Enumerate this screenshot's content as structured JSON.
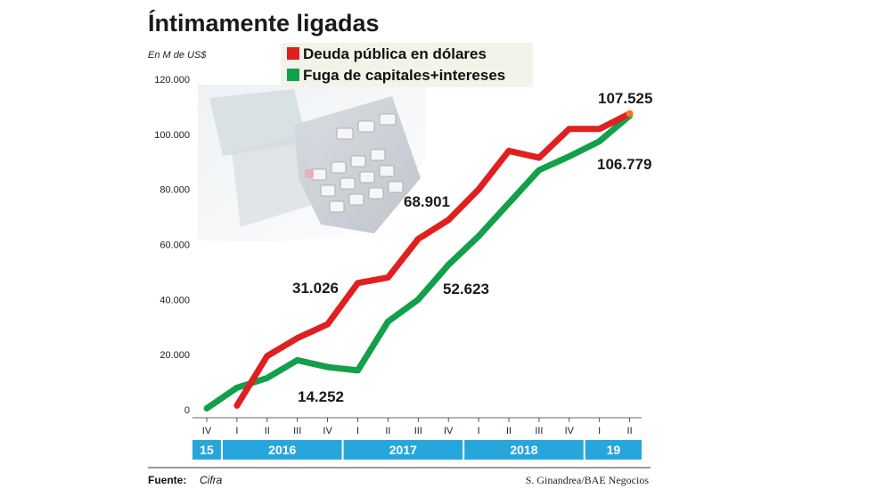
{
  "chart_data": {
    "type": "line",
    "title": "Íntimamente ligadas",
    "unit_label": "En M de US$",
    "ylim": [
      0,
      120000
    ],
    "y_ticks": [
      "0",
      "20.000",
      "40.000",
      "60.000",
      "80.000",
      "100.000",
      "120.000"
    ],
    "x": [
      "IV",
      "I",
      "II",
      "III",
      "IV",
      "I",
      "II",
      "III",
      "IV",
      "I",
      "II",
      "III",
      "IV",
      "I",
      "II"
    ],
    "years": [
      {
        "label": "15",
        "start": 0,
        "end": 0
      },
      {
        "label": "2016",
        "start": 1,
        "end": 4
      },
      {
        "label": "2017",
        "start": 5,
        "end": 8
      },
      {
        "label": "2018",
        "start": 9,
        "end": 12
      },
      {
        "label": "19",
        "start": 13,
        "end": 14
      }
    ],
    "legend_position": "top",
    "grid": false,
    "series": [
      {
        "name": "Deuda pública en dólares",
        "color": "#e02020",
        "values": [
          null,
          1500,
          19500,
          26000,
          31026,
          46000,
          48000,
          62000,
          68901,
          80000,
          94000,
          91500,
          102000,
          102000,
          107525
        ]
      },
      {
        "name": "Fuga de capitales+intereses",
        "color": "#12a04a",
        "values": [
          500,
          8000,
          11500,
          18000,
          15500,
          14252,
          32000,
          40000,
          52623,
          63000,
          75000,
          87000,
          92000,
          97500,
          106779
        ]
      }
    ],
    "annotations": [
      {
        "text": "31.026",
        "series": 0,
        "index": 4
      },
      {
        "text": "68.901",
        "series": 0,
        "index": 8
      },
      {
        "text": "107.525",
        "series": 0,
        "index": 14
      },
      {
        "text": "14.252",
        "series": 1,
        "index": 5
      },
      {
        "text": "52.623",
        "series": 1,
        "index": 8
      },
      {
        "text": "106.779",
        "series": 1,
        "index": 14
      }
    ]
  },
  "footer": {
    "source_label": "Fuente:",
    "source_value": "Cifra",
    "credit": "S. Ginandrea/BAE Negocios"
  }
}
